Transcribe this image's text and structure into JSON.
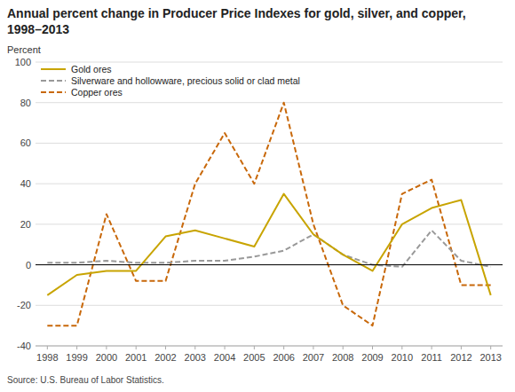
{
  "chart_data": {
    "type": "line",
    "title": "Annual percent change in Producer Price Indexes for gold, silver, and copper,",
    "subtitle": "1998–2013",
    "y_label": "Percent",
    "source": "Source: U.S. Bureau of Labor Statistics.",
    "x": [
      1998,
      1999,
      2000,
      2001,
      2002,
      2003,
      2004,
      2005,
      2006,
      2007,
      2008,
      2009,
      2010,
      2011,
      2012,
      2013
    ],
    "xlim": [
      1997.6,
      2013.4
    ],
    "xticks": [
      1998,
      1999,
      2000,
      2001,
      2002,
      2003,
      2004,
      2005,
      2006,
      2007,
      2008,
      2009,
      2010,
      2011,
      2012,
      2013
    ],
    "ylim": [
      -40,
      100
    ],
    "yticks": [
      -40,
      -20,
      0,
      20,
      40,
      60,
      80,
      100
    ],
    "grid": true,
    "legend": "upper left",
    "series": [
      {
        "name": "Gold ores",
        "color": "#C8A400",
        "line_style": "solid",
        "values": [
          -15,
          -5,
          -3,
          -3,
          14,
          17,
          13,
          9,
          35,
          15,
          5,
          -3,
          20,
          28,
          32,
          -15
        ]
      },
      {
        "name": "Silverware and hollowware, precious solid or clad metal",
        "color": "#999999",
        "line_style": "dashed",
        "values": [
          1,
          1,
          2,
          1,
          1,
          2,
          2,
          4,
          7,
          15,
          5,
          0,
          -1,
          17,
          2,
          -1
        ]
      },
      {
        "name": "Copper ores",
        "color": "#C8680A",
        "line_style": "dashed",
        "values": [
          -30,
          -30,
          25,
          -8,
          -8,
          40,
          65,
          40,
          80,
          20,
          -20,
          -30,
          35,
          42,
          -10,
          -10
        ]
      }
    ]
  }
}
